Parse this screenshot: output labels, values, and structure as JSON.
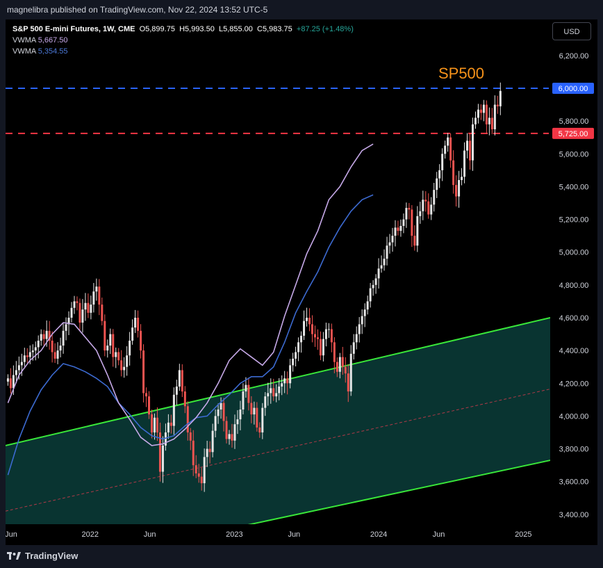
{
  "header": {
    "caption": "magnelibra published on TradingView.com, Nov 22, 2024 13:52 UTC-5"
  },
  "legend": {
    "symbol": "S&P 500 E-mini Futures, 1W, CME",
    "open": "O5,899.75",
    "high": "H5,993.50",
    "low": "L5,855.00",
    "close": "C5,983.75",
    "change": "+87.25 (+1.48%)",
    "vwma1_label": "VWMA",
    "vwma1_value": "5,667.50",
    "vwma2_label": "VWMA",
    "vwma2_value": "5,354.55"
  },
  "currency_button": "USD",
  "annotation": {
    "text": "SP500",
    "color": "#f7931a"
  },
  "footer": {
    "brand": "TradingView",
    "logo": "tradingview-logo"
  },
  "colors": {
    "up": "#e6e6e6",
    "down": "#ef5350",
    "channel_line": "#39e639",
    "channel_fill": "#0b3d3a",
    "midline": "#b03a48",
    "vwma_short": "#c6a9e8",
    "vwma_long": "#3c6ad0",
    "resistance": "#2962ff",
    "support": "#f23645",
    "annotation": "#f7931a"
  },
  "chart_data": {
    "type": "candlestick",
    "title": "S&P 500 E-mini Futures, 1W, CME",
    "ylim": [
      3340,
      6420
    ],
    "y_ticks": [
      3400,
      3600,
      3800,
      4000,
      4200,
      4400,
      4600,
      4800,
      5000,
      5200,
      5400,
      5600,
      5800,
      6200
    ],
    "y_tick_labels": [
      "3,400.00",
      "3,600.00",
      "3,800.00",
      "4,000.00",
      "4,200.00",
      "4,400.00",
      "4,600.00",
      "4,800.00",
      "5,000.00",
      "5,200.00",
      "5,400.00",
      "5,600.00",
      "5,800.00",
      "6,200.00"
    ],
    "x_labels": [
      "Jun",
      "2022",
      "Jun",
      "2023",
      "Jun",
      "2024",
      "Jun",
      "2025"
    ],
    "x_label_dates": [
      "2021-06-01",
      "2022-01-01",
      "2022-06-01",
      "2023-01-01",
      "2023-06-01",
      "2024-01-01",
      "2024-06-01",
      "2025-01-01"
    ],
    "x_start": "2021-06-01",
    "x_end": "2025-03-10",
    "closes_weekly": {
      "start": "2021-06-07",
      "values": [
        4230,
        4170,
        4250,
        4280,
        4310,
        4330,
        4370,
        4360,
        4390,
        4400,
        4420,
        4460,
        4500,
        4470,
        4520,
        4460,
        4390,
        4350,
        4400,
        4430,
        4520,
        4560,
        4600,
        4660,
        4700,
        4690,
        4570,
        4650,
        4690,
        4630,
        4680,
        4760,
        4790,
        4680,
        4580,
        4400,
        4430,
        4500,
        4360,
        4390,
        4340,
        4280,
        4300,
        4370,
        4460,
        4540,
        4600,
        4520,
        4400,
        4140,
        4120,
        4010,
        3900,
        3990,
        3900,
        3660,
        3820,
        3900,
        3960,
        3940,
        4130,
        4180,
        4280,
        4150,
        4060,
        3900,
        3850,
        3700,
        3650,
        3630,
        3590,
        3750,
        3800,
        3780,
        3910,
        4000,
        4040,
        4080,
        3970,
        3860,
        3890,
        3850,
        3950,
        3980,
        4040,
        4150,
        4190,
        4080,
        4010,
        4050,
        3930,
        3900,
        4050,
        4120,
        4140,
        4170,
        4120,
        4140,
        4180,
        4200,
        4230,
        4200,
        4310,
        4350,
        4390,
        4450,
        4490,
        4580,
        4600,
        4560,
        4500,
        4480,
        4470,
        4370,
        4470,
        4530,
        4530,
        4450,
        4330,
        4270,
        4360,
        4300,
        4260,
        4150,
        4380,
        4450,
        4500,
        4560,
        4610,
        4650,
        4700,
        4780,
        4800,
        4840,
        4900,
        4920,
        4960,
        5040,
        5060,
        5100,
        5150,
        5130,
        5160,
        5200,
        5270,
        5260,
        5100,
        5040,
        5220,
        5250,
        5320,
        5310,
        5230,
        5290,
        5380,
        5450,
        5500,
        5600,
        5650,
        5700,
        5560,
        5410,
        5340,
        5440,
        5460,
        5620,
        5680,
        5560,
        5780,
        5820,
        5870,
        5850,
        5900,
        5780,
        5820,
        5750,
        5900,
        5890,
        5984
      ]
    },
    "vwma_short": {
      "name": "VWMA 5,667.50",
      "start": "2021-06-07",
      "values_sample_every_4_weeks": [
        4080,
        4250,
        4340,
        4400,
        4500,
        4570,
        4560,
        4480,
        4400,
        4250,
        4080,
        3980,
        3870,
        3820,
        3830,
        3860,
        3920,
        3990,
        4080,
        4200,
        4340,
        4410,
        4360,
        4310,
        4390,
        4610,
        4800,
        4990,
        5130,
        5320,
        5400,
        5520,
        5620,
        5660
      ]
    },
    "vwma_long": {
      "name": "VWMA 5,354.55",
      "start": "2021-06-07",
      "values_sample_every_4_weeks": [
        3640,
        3860,
        4030,
        4160,
        4250,
        4320,
        4300,
        4270,
        4230,
        4180,
        4080,
        4010,
        3930,
        3880,
        3860,
        3880,
        3940,
        3990,
        4000,
        4070,
        4130,
        4200,
        4240,
        4240,
        4300,
        4450,
        4630,
        4760,
        4880,
        5030,
        5150,
        5250,
        5320,
        5350
      ]
    },
    "channel": {
      "upper": [
        [
          "2021-06-01",
          3820
        ],
        [
          "2025-03-10",
          4600
        ]
      ],
      "lower": [
        [
          "2021-06-01",
          3020
        ],
        [
          "2025-03-10",
          3730
        ]
      ],
      "mid": [
        [
          "2021-06-01",
          3420
        ],
        [
          "2025-03-10",
          4165
        ]
      ]
    },
    "levels": [
      {
        "value": 6000,
        "label": "6,000.00",
        "style": "dashed",
        "color": "#2962ff"
      },
      {
        "value": 5725,
        "label": "5,725.00",
        "style": "dashed",
        "color": "#f23645"
      }
    ],
    "annotations": [
      {
        "text": "SP500"
      }
    ],
    "grid": false
  }
}
